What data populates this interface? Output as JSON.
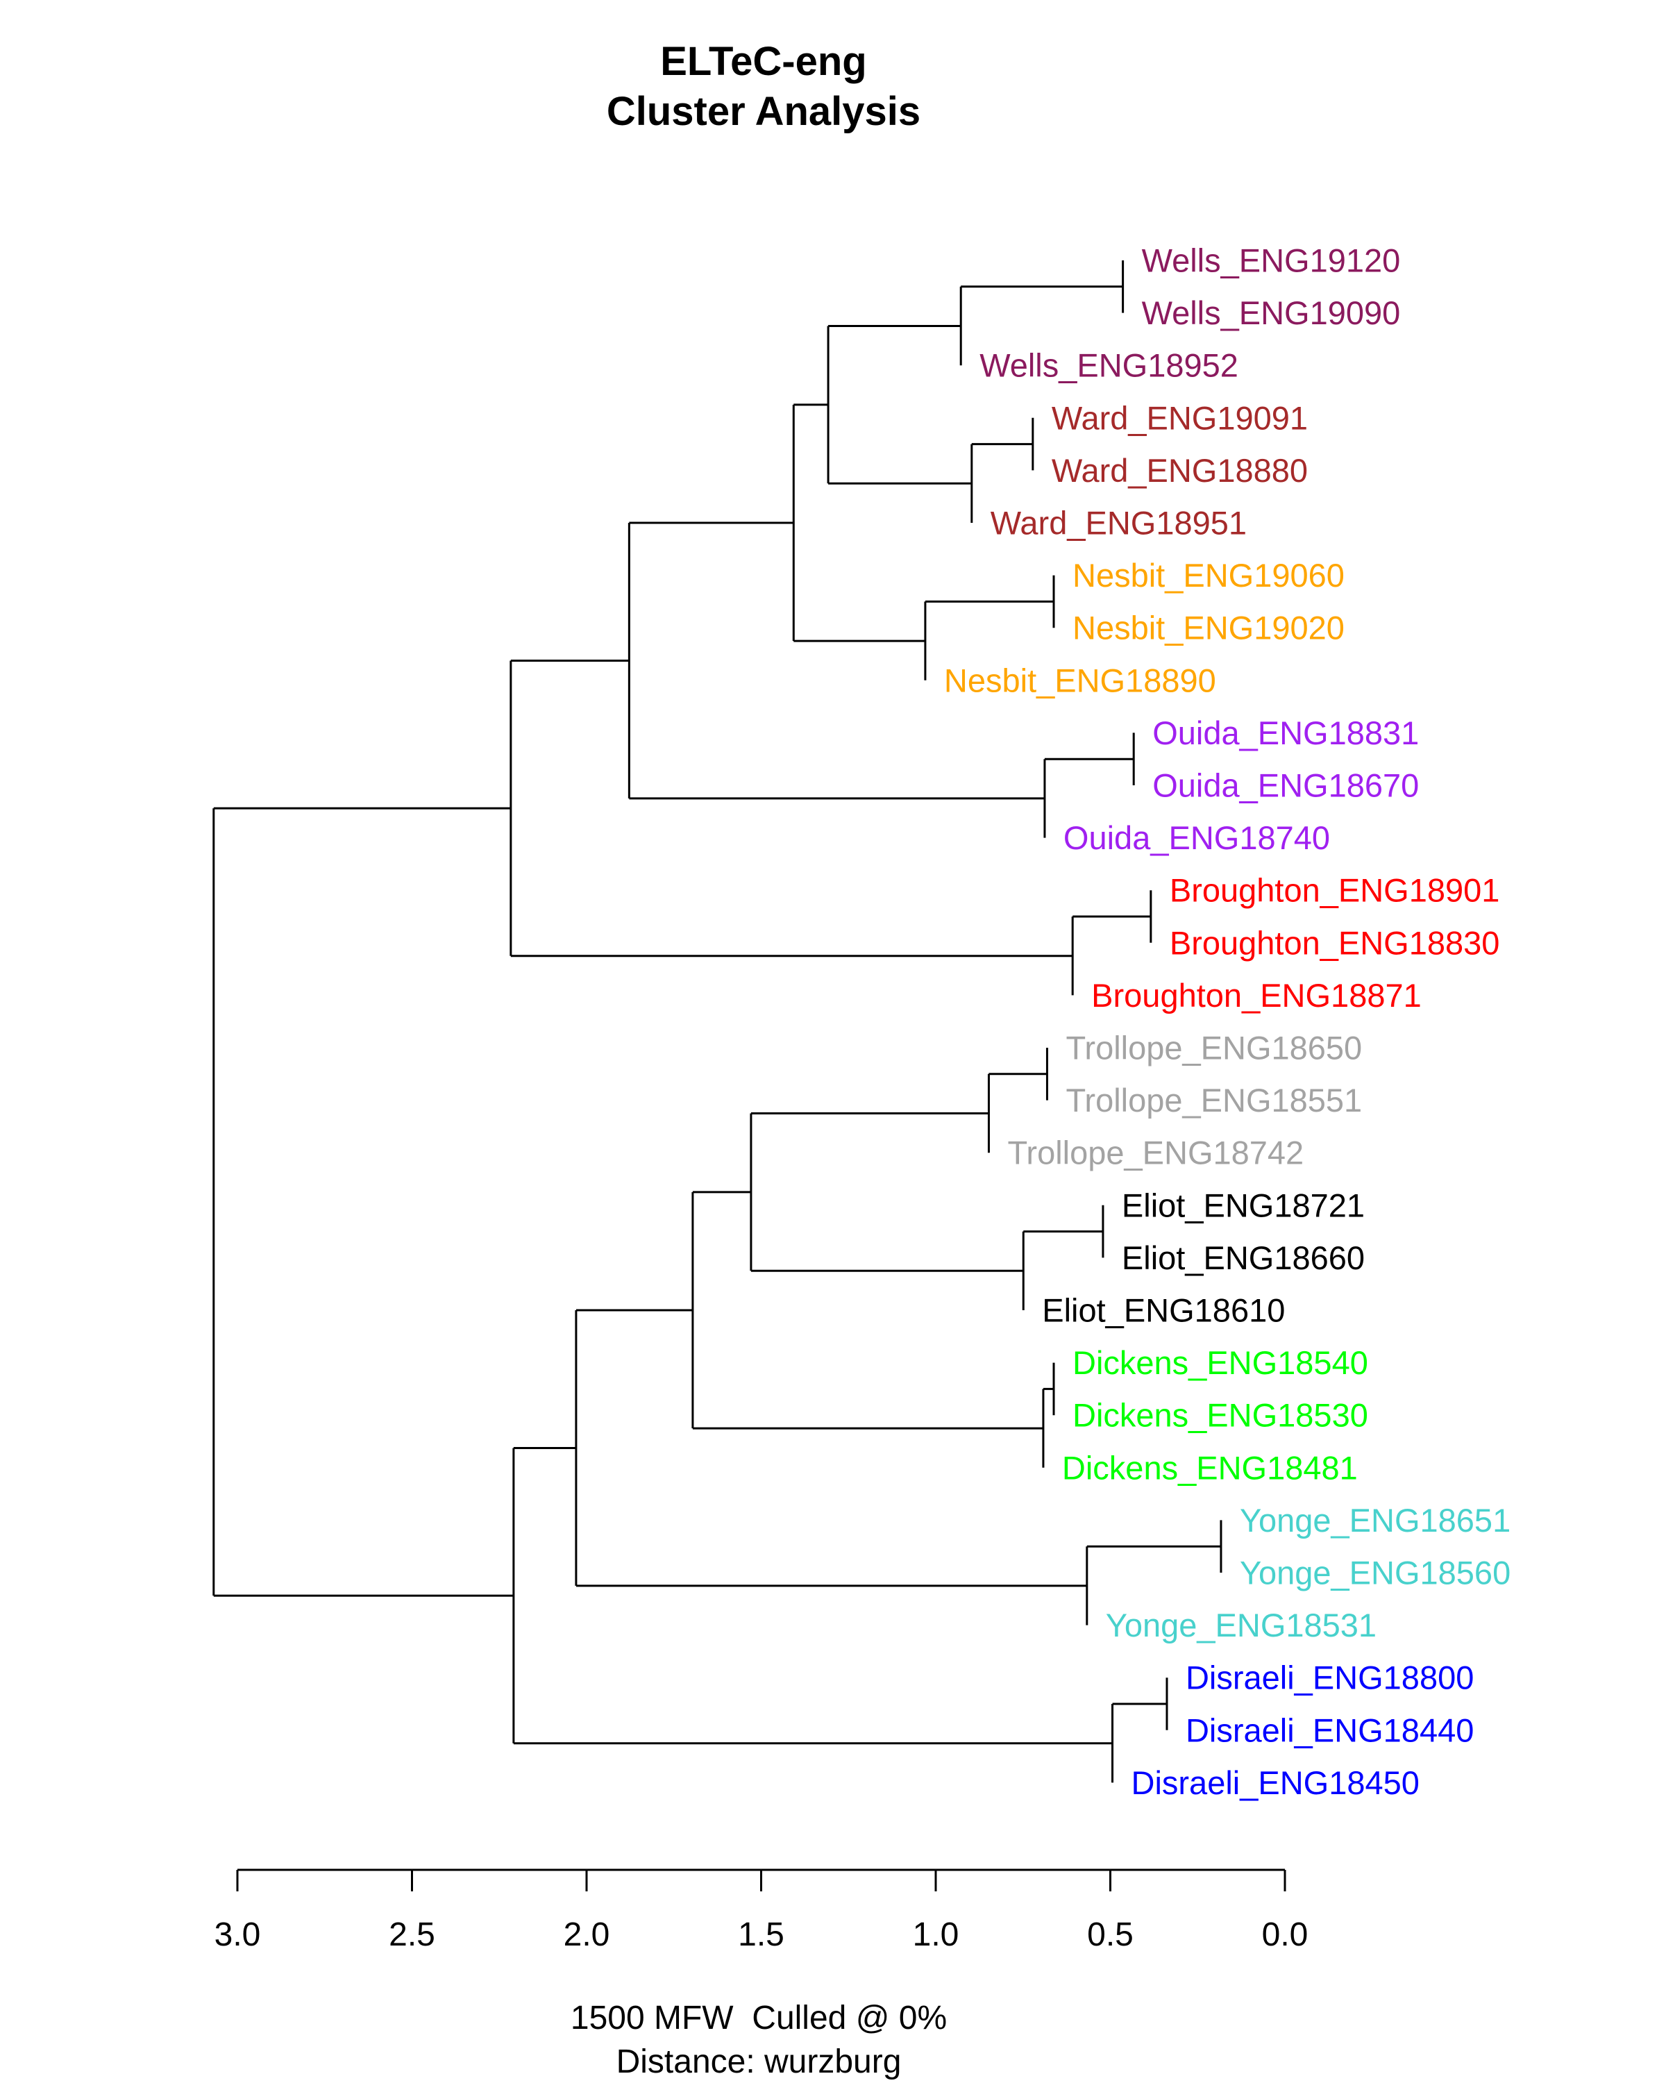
{
  "chart_data": {
    "type": "dendrogram",
    "title": [
      "ELTeC-eng",
      "Cluster Analysis"
    ],
    "subtitle": [
      "1500 MFW  Culled @ 0%",
      "Distance: wurzburg"
    ],
    "xlim": [
      3.0,
      0.0
    ],
    "ticks": [
      "3.0",
      "2.5",
      "2.0",
      "1.5",
      "1.0",
      "0.5",
      "0.0"
    ],
    "tick_values": [
      3.0,
      2.5,
      2.0,
      1.5,
      1.0,
      0.5,
      0.0
    ],
    "leaves": [
      {
        "label": "Wells_ENG19120",
        "color": "#8B1A5E"
      },
      {
        "label": "Wells_ENG19090",
        "color": "#8B1A5E"
      },
      {
        "label": "Wells_ENG18952",
        "color": "#8B1A5E"
      },
      {
        "label": "Ward_ENG19091",
        "color": "#A52A2A"
      },
      {
        "label": "Ward_ENG18880",
        "color": "#A52A2A"
      },
      {
        "label": "Ward_ENG18951",
        "color": "#A52A2A"
      },
      {
        "label": "Nesbit_ENG19060",
        "color": "#FFA500"
      },
      {
        "label": "Nesbit_ENG19020",
        "color": "#FFA500"
      },
      {
        "label": "Nesbit_ENG18890",
        "color": "#FFA500"
      },
      {
        "label": "Ouida_ENG18831",
        "color": "#A020F0"
      },
      {
        "label": "Ouida_ENG18670",
        "color": "#A020F0"
      },
      {
        "label": "Ouida_ENG18740",
        "color": "#A020F0"
      },
      {
        "label": "Broughton_ENG18901",
        "color": "#FF0000"
      },
      {
        "label": "Broughton_ENG18830",
        "color": "#FF0000"
      },
      {
        "label": "Broughton_ENG18871",
        "color": "#FF0000"
      },
      {
        "label": "Trollope_ENG18650",
        "color": "#A3A3A3"
      },
      {
        "label": "Trollope_ENG18551",
        "color": "#A3A3A3"
      },
      {
        "label": "Trollope_ENG18742",
        "color": "#A3A3A3"
      },
      {
        "label": "Eliot_ENG18721",
        "color": "#000000"
      },
      {
        "label": "Eliot_ENG18660",
        "color": "#000000"
      },
      {
        "label": "Eliot_ENG18610",
        "color": "#000000"
      },
      {
        "label": "Dickens_ENG18540",
        "color": "#00FF00"
      },
      {
        "label": "Dickens_ENG18530",
        "color": "#00FF00"
      },
      {
        "label": "Dickens_ENG18481",
        "color": "#00FF00"
      },
      {
        "label": "Yonge_ENG18651",
        "color": "#48D1CC"
      },
      {
        "label": "Yonge_ENG18560",
        "color": "#48D1CC"
      },
      {
        "label": "Yonge_ENG18531",
        "color": "#48D1CC"
      },
      {
        "label": "Disraeli_ENG18800",
        "color": "#0000FF"
      },
      {
        "label": "Disraeli_ENG18440",
        "color": "#0000FF"
      },
      {
        "label": "Disraeli_ENG18450",
        "color": "#0000FF"
      }
    ],
    "tree": {
      "h": 3.068,
      "c": [
        {
          "h": 2.217,
          "c": [
            {
              "h": 1.878,
              "c": [
                {
                  "h": 1.407,
                  "c": [
                    {
                      "h": 1.308,
                      "c": [
                        {
                          "h": 0.928,
                          "c": [
                            {
                              "h": 0.464,
                              "c": [
                                {
                                  "leaf": 0
                                },
                                {
                                  "leaf": 1
                                }
                              ]
                            },
                            {
                              "leaf": 2
                            }
                          ]
                        },
                        {
                          "h": 0.897,
                          "c": [
                            {
                              "h": 0.722,
                              "c": [
                                {
                                  "leaf": 3
                                },
                                {
                                  "leaf": 4
                                }
                              ]
                            },
                            {
                              "leaf": 5
                            }
                          ]
                        }
                      ]
                    },
                    {
                      "h": 1.03,
                      "c": [
                        {
                          "h": 0.662,
                          "c": [
                            {
                              "leaf": 6
                            },
                            {
                              "leaf": 7
                            }
                          ]
                        },
                        {
                          "leaf": 8
                        }
                      ]
                    }
                  ]
                },
                {
                  "h": 0.688,
                  "c": [
                    {
                      "h": 0.433,
                      "c": [
                        {
                          "leaf": 9
                        },
                        {
                          "leaf": 10
                        }
                      ]
                    },
                    {
                      "leaf": 11
                    }
                  ]
                }
              ]
            },
            {
              "h": 0.608,
              "c": [
                {
                  "h": 0.384,
                  "c": [
                    {
                      "leaf": 12
                    },
                    {
                      "leaf": 13
                    }
                  ]
                },
                {
                  "leaf": 14
                }
              ]
            }
          ]
        },
        {
          "h": 2.209,
          "c": [
            {
              "h": 2.03,
              "c": [
                {
                  "h": 1.696,
                  "c": [
                    {
                      "h": 1.529,
                      "c": [
                        {
                          "h": 0.848,
                          "c": [
                            {
                              "h": 0.681,
                              "c": [
                                {
                                  "leaf": 15
                                },
                                {
                                  "leaf": 16
                                }
                              ]
                            },
                            {
                              "leaf": 17
                            }
                          ]
                        },
                        {
                          "h": 0.749,
                          "c": [
                            {
                              "h": 0.521,
                              "c": [
                                {
                                  "leaf": 18
                                },
                                {
                                  "leaf": 19
                                }
                              ]
                            },
                            {
                              "leaf": 20
                            }
                          ]
                        }
                      ]
                    },
                    {
                      "h": 0.692,
                      "c": [
                        {
                          "h": 0.662,
                          "c": [
                            {
                              "leaf": 21
                            },
                            {
                              "leaf": 22
                            }
                          ]
                        },
                        {
                          "leaf": 23
                        }
                      ]
                    }
                  ]
                },
                {
                  "h": 0.567,
                  "c": [
                    {
                      "h": 0.183,
                      "c": [
                        {
                          "leaf": 24
                        },
                        {
                          "leaf": 25
                        }
                      ]
                    },
                    {
                      "leaf": 26
                    }
                  ]
                }
              ]
            },
            {
              "h": 0.494,
              "c": [
                {
                  "h": 0.338,
                  "c": [
                    {
                      "leaf": 27
                    },
                    {
                      "leaf": 28
                    }
                  ]
                },
                {
                  "leaf": 29
                }
              ]
            }
          ]
        }
      ]
    }
  }
}
